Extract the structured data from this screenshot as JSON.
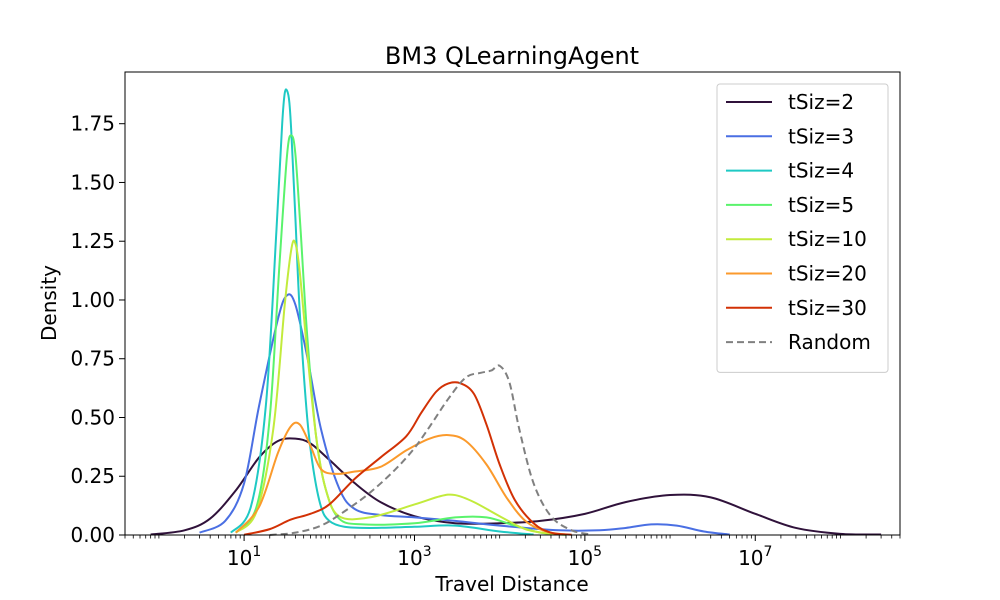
{
  "chart_data": {
    "type": "line",
    "title": "BM3 QLearningAgent",
    "xlabel": "Travel Distance",
    "ylabel": "Density",
    "xscale": "log",
    "xlim": [
      0.4,
      500000000
    ],
    "ylim": [
      0,
      1.97
    ],
    "x_ticks": [
      {
        "value": 10,
        "base": "10",
        "exp": "1"
      },
      {
        "value": 1000,
        "base": "10",
        "exp": "3"
      },
      {
        "value": 100000,
        "base": "10",
        "exp": "5"
      },
      {
        "value": 10000000,
        "base": "10",
        "exp": "7"
      }
    ],
    "y_ticks": [
      {
        "value": 0,
        "label": "0.00"
      },
      {
        "value": 0.25,
        "label": "0.25"
      },
      {
        "value": 0.5,
        "label": "0.50"
      },
      {
        "value": 0.75,
        "label": "0.75"
      },
      {
        "value": 1.0,
        "label": "1.00"
      },
      {
        "value": 1.25,
        "label": "1.25"
      },
      {
        "value": 1.5,
        "label": "1.50"
      },
      {
        "value": 1.75,
        "label": "1.75"
      }
    ],
    "grid": false,
    "legend_position": "top-right",
    "series": [
      {
        "name": "tSiz=2",
        "color": "#30123b",
        "dash": "solid",
        "x": [
          0.8,
          2,
          4,
          8,
          15,
          25,
          40,
          60,
          100,
          200,
          400,
          1000,
          3000,
          10000,
          30000,
          100000,
          300000,
          1000000,
          3000000,
          10000000,
          30000000,
          100000000,
          300000000
        ],
        "y": [
          0.002,
          0.02,
          0.07,
          0.19,
          0.33,
          0.4,
          0.41,
          0.39,
          0.32,
          0.22,
          0.14,
          0.08,
          0.05,
          0.05,
          0.06,
          0.09,
          0.14,
          0.17,
          0.16,
          0.09,
          0.03,
          0.005,
          0.002
        ]
      },
      {
        "name": "tSiz=3",
        "color": "#4a6fe3",
        "dash": "solid",
        "x": [
          3,
          6,
          10,
          15,
          25,
          32,
          40,
          55,
          80,
          130,
          200,
          400,
          1000,
          3000,
          10000,
          50000,
          150000,
          300000,
          600000,
          1200000,
          2500000,
          5000000
        ],
        "y": [
          0.01,
          0.06,
          0.22,
          0.55,
          0.92,
          1.02,
          0.98,
          0.76,
          0.45,
          0.2,
          0.11,
          0.085,
          0.075,
          0.06,
          0.04,
          0.02,
          0.02,
          0.03,
          0.045,
          0.04,
          0.015,
          0.002
        ]
      },
      {
        "name": "tSiz=4",
        "color": "#1fc9c4",
        "dash": "solid",
        "x": [
          7,
          12,
          18,
          24,
          28,
          30,
          32,
          34,
          36,
          40,
          45,
          55,
          65,
          80,
          100,
          150,
          300,
          1000,
          3000,
          10000,
          25000
        ],
        "y": [
          0.01,
          0.12,
          0.55,
          1.3,
          1.75,
          1.88,
          1.89,
          1.84,
          1.7,
          1.35,
          0.95,
          0.5,
          0.28,
          0.12,
          0.06,
          0.035,
          0.03,
          0.035,
          0.04,
          0.015,
          0.002
        ]
      },
      {
        "name": "tSiz=5",
        "color": "#5af36c",
        "dash": "solid",
        "x": [
          8,
          14,
          20,
          26,
          32,
          36,
          40,
          46,
          55,
          70,
          90,
          130,
          250,
          1000,
          3000,
          7000,
          15000,
          30000,
          60000
        ],
        "y": [
          0.01,
          0.12,
          0.5,
          1.15,
          1.62,
          1.7,
          1.62,
          1.3,
          0.85,
          0.42,
          0.2,
          0.07,
          0.045,
          0.05,
          0.075,
          0.075,
          0.04,
          0.01,
          0.001
        ]
      },
      {
        "name": "tSiz=10",
        "color": "#c2eb3c",
        "dash": "solid",
        "x": [
          8,
          14,
          22,
          30,
          36,
          40,
          45,
          55,
          70,
          90,
          130,
          300,
          1000,
          2000,
          3000,
          5000,
          10000,
          20000,
          40000,
          60000
        ],
        "y": [
          0.01,
          0.1,
          0.45,
          0.98,
          1.22,
          1.24,
          1.12,
          0.78,
          0.42,
          0.2,
          0.08,
          0.075,
          0.13,
          0.165,
          0.17,
          0.14,
          0.08,
          0.025,
          0.005,
          0.001
        ]
      },
      {
        "name": "tSiz=20",
        "color": "#fb9a2c",
        "dash": "solid",
        "x": [
          8,
          15,
          25,
          35,
          45,
          60,
          80,
          120,
          200,
          400,
          800,
          1500,
          2500,
          4000,
          7000,
          12000,
          20000,
          35000,
          60000
        ],
        "y": [
          0.01,
          0.12,
          0.35,
          0.46,
          0.47,
          0.38,
          0.28,
          0.26,
          0.27,
          0.29,
          0.36,
          0.41,
          0.425,
          0.4,
          0.3,
          0.16,
          0.06,
          0.015,
          0.002
        ]
      },
      {
        "name": "tSiz=30",
        "color": "#d23105",
        "dash": "solid",
        "x": [
          10,
          20,
          35,
          60,
          100,
          200,
          400,
          800,
          1200,
          1800,
          2500,
          3500,
          5000,
          7000,
          10000,
          15000,
          25000,
          40000,
          70000
        ],
        "y": [
          0.001,
          0.025,
          0.065,
          0.09,
          0.13,
          0.24,
          0.33,
          0.42,
          0.52,
          0.61,
          0.645,
          0.645,
          0.6,
          0.47,
          0.3,
          0.15,
          0.05,
          0.01,
          0.001
        ]
      },
      {
        "name": "Random",
        "color": "#808080",
        "dash": "dashed",
        "x": [
          20,
          40,
          80,
          150,
          300,
          600,
          1000,
          1500,
          2500,
          4000,
          6000,
          8000,
          10000,
          13000,
          17000,
          25000,
          40000,
          70000,
          120000
        ],
        "y": [
          0.0,
          0.01,
          0.04,
          0.1,
          0.18,
          0.28,
          0.37,
          0.46,
          0.58,
          0.67,
          0.69,
          0.7,
          0.72,
          0.65,
          0.45,
          0.22,
          0.08,
          0.02,
          0.002
        ]
      }
    ]
  }
}
